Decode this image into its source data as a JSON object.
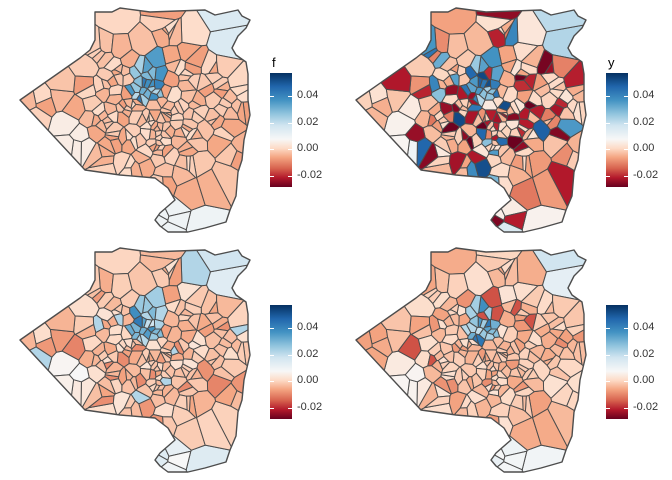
{
  "colors": {
    "border": "#4d4d4d",
    "palette_low": "#67001f",
    "palette_mid": "#f7f7f7",
    "palette_high": "#053061"
  },
  "legend_scale": {
    "min": -0.028,
    "max": 0.057,
    "ticks": [
      "0.04",
      "0.02",
      "0.00",
      "-0.02"
    ],
    "tick_values": [
      0.04,
      0.02,
      0.0,
      -0.02
    ]
  },
  "panels": [
    {
      "legend_title": "f"
    },
    {
      "legend_title": "y"
    },
    {
      "legend_title": ""
    },
    {
      "legend_title": ""
    }
  ]
}
